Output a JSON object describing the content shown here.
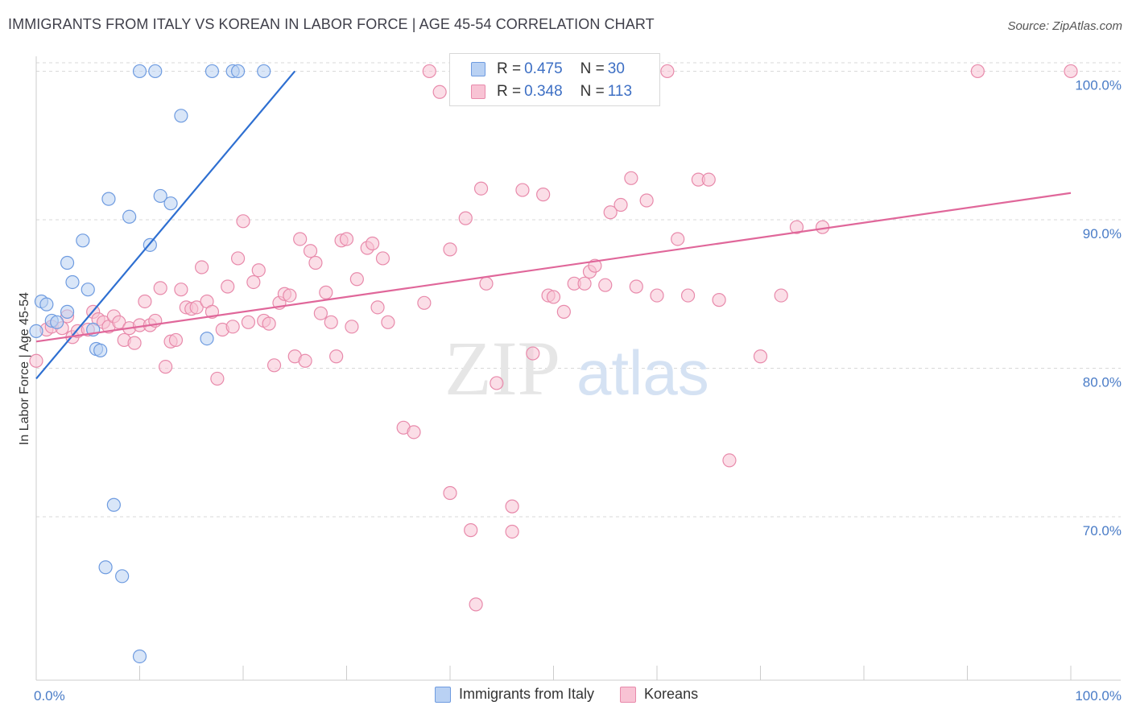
{
  "title": "IMMIGRANTS FROM ITALY VS KOREAN IN LABOR FORCE | AGE 45-54 CORRELATION CHART",
  "source": "Source: ZipAtlas.com",
  "watermark": {
    "zip": "ZIP",
    "atlas": "atlas"
  },
  "legend": {
    "rows": [
      {
        "r_label": "R = ",
        "r_value": "0.475",
        "n_label": "N = ",
        "n_value": "30"
      },
      {
        "r_label": "R = ",
        "r_value": "0.348",
        "n_label": "N = ",
        "n_value": "113"
      }
    ]
  },
  "colors": {
    "italy_fill": "#b9d1f3",
    "italy_stroke": "#6e9be0",
    "italy_line": "#2e6fd1",
    "korean_fill": "#f8c3d4",
    "korean_stroke": "#e88aab",
    "korean_line": "#e0679a",
    "tick_text": "#4a7cc7",
    "grid": "#d9d9d9"
  },
  "chart_data": {
    "type": "scatter",
    "title": "IMMIGRANTS FROM ITALY VS KOREAN IN LABOR FORCE | AGE 45-54 CORRELATION CHART",
    "xlabel": "",
    "ylabel": "In Labor Force | Age 45-54",
    "xlim": [
      0,
      100
    ],
    "ylim": [
      59,
      101
    ],
    "x_tick_labels": [
      "0.0%",
      "100.0%"
    ],
    "y_ticks": [
      70,
      80,
      90,
      100
    ],
    "y_tick_labels": [
      "70.0%",
      "80.0%",
      "90.0%",
      "100.0%"
    ],
    "grid": true,
    "legend_position": "top-center",
    "series": [
      {
        "name": "Immigrants from Italy",
        "r": 0.475,
        "n": 30,
        "trend": {
          "x": [
            0,
            25
          ],
          "y": [
            79.3,
            100
          ]
        },
        "points": [
          [
            0,
            82.5
          ],
          [
            0.5,
            84.5
          ],
          [
            1,
            84.3
          ],
          [
            1.5,
            83.2
          ],
          [
            2,
            83.1
          ],
          [
            3,
            83.8
          ],
          [
            3,
            87.1
          ],
          [
            3.5,
            85.8
          ],
          [
            4.5,
            88.6
          ],
          [
            5,
            85.3
          ],
          [
            5.5,
            82.6
          ],
          [
            5.8,
            81.3
          ],
          [
            6.2,
            81.2
          ],
          [
            7,
            91.4
          ],
          [
            9,
            90.2
          ],
          [
            10,
            100
          ],
          [
            11,
            88.3
          ],
          [
            11.5,
            100
          ],
          [
            12,
            91.6
          ],
          [
            13,
            91.1
          ],
          [
            14,
            97
          ],
          [
            16.5,
            82
          ],
          [
            17,
            100
          ],
          [
            19,
            100
          ],
          [
            19.5,
            100
          ],
          [
            22,
            100
          ],
          [
            7.5,
            70.8
          ],
          [
            6.7,
            66.6
          ],
          [
            8.3,
            66
          ],
          [
            10,
            60.6
          ]
        ]
      },
      {
        "name": "Koreans",
        "r": 0.348,
        "n": 113,
        "trend": {
          "x": [
            0,
            100
          ],
          "y": [
            81.8,
            91.8
          ]
        },
        "points": [
          [
            0,
            80.5
          ],
          [
            1,
            82.6
          ],
          [
            1.5,
            82.8
          ],
          [
            2.5,
            82.7
          ],
          [
            3,
            83.5
          ],
          [
            3.5,
            82.1
          ],
          [
            4,
            82.5
          ],
          [
            5,
            82.6
          ],
          [
            5.5,
            83.8
          ],
          [
            6,
            83.3
          ],
          [
            6.5,
            83.1
          ],
          [
            7,
            82.8
          ],
          [
            7.5,
            83.5
          ],
          [
            8,
            83.1
          ],
          [
            8.5,
            81.9
          ],
          [
            9,
            82.7
          ],
          [
            9.5,
            81.7
          ],
          [
            10,
            82.9
          ],
          [
            10.5,
            84.5
          ],
          [
            11,
            82.9
          ],
          [
            11.5,
            83.2
          ],
          [
            12,
            85.4
          ],
          [
            12.5,
            80.1
          ],
          [
            13,
            81.8
          ],
          [
            13.5,
            81.9
          ],
          [
            14,
            85.3
          ],
          [
            14.5,
            84.1
          ],
          [
            15,
            84
          ],
          [
            15.5,
            84.1
          ],
          [
            16,
            86.8
          ],
          [
            16.5,
            84.5
          ],
          [
            17,
            83.8
          ],
          [
            17.5,
            79.3
          ],
          [
            18,
            82.6
          ],
          [
            18.5,
            85.5
          ],
          [
            19,
            82.8
          ],
          [
            19.5,
            87.4
          ],
          [
            20,
            89.9
          ],
          [
            20.5,
            83.1
          ],
          [
            21,
            85.8
          ],
          [
            21.5,
            86.6
          ],
          [
            22,
            83.2
          ],
          [
            22.5,
            83
          ],
          [
            23,
            80.2
          ],
          [
            23.5,
            84.4
          ],
          [
            24,
            85
          ],
          [
            24.5,
            84.9
          ],
          [
            25,
            80.8
          ],
          [
            25.5,
            88.7
          ],
          [
            26,
            80.5
          ],
          [
            26.5,
            87.9
          ],
          [
            27,
            87.1
          ],
          [
            27.5,
            83.7
          ],
          [
            28,
            85.1
          ],
          [
            28.5,
            83.1
          ],
          [
            29,
            80.8
          ],
          [
            29.5,
            88.6
          ],
          [
            30,
            88.7
          ],
          [
            30.5,
            82.8
          ],
          [
            31,
            86
          ],
          [
            32,
            88.1
          ],
          [
            32.5,
            88.4
          ],
          [
            33,
            84.1
          ],
          [
            33.5,
            87.4
          ],
          [
            34,
            83.1
          ],
          [
            35.5,
            76
          ],
          [
            36.5,
            75.7
          ],
          [
            37.5,
            84.4
          ],
          [
            38,
            100
          ],
          [
            39,
            98.6
          ],
          [
            40,
            71.6
          ],
          [
            40,
            88
          ],
          [
            41.5,
            90.1
          ],
          [
            42,
            69.1
          ],
          [
            42.5,
            64.1
          ],
          [
            43,
            92.1
          ],
          [
            43.5,
            85.7
          ],
          [
            44,
            100
          ],
          [
            44.5,
            79
          ],
          [
            46,
            70.7
          ],
          [
            46,
            69
          ],
          [
            47,
            92
          ],
          [
            48,
            81
          ],
          [
            49,
            91.7
          ],
          [
            49.5,
            84.9
          ],
          [
            50,
            84.8
          ],
          [
            51,
            83.8
          ],
          [
            52,
            85.7
          ],
          [
            53,
            85.7
          ],
          [
            53.5,
            86.5
          ],
          [
            54,
            86.9
          ],
          [
            55,
            85.6
          ],
          [
            55.5,
            90.5
          ],
          [
            56.5,
            91
          ],
          [
            57.5,
            92.8
          ],
          [
            58,
            85.5
          ],
          [
            59,
            91.3
          ],
          [
            60,
            84.9
          ],
          [
            61,
            100
          ],
          [
            62,
            88.7
          ],
          [
            63,
            84.9
          ],
          [
            64,
            92.7
          ],
          [
            65,
            92.7
          ],
          [
            66,
            84.6
          ],
          [
            67,
            73.8
          ],
          [
            70,
            80.8
          ],
          [
            72,
            84.9
          ],
          [
            73.5,
            89.5
          ],
          [
            76,
            89.5
          ],
          [
            91,
            100
          ],
          [
            100,
            100
          ]
        ]
      }
    ]
  },
  "bottom_legend": [
    "Immigrants from Italy",
    "Koreans"
  ]
}
